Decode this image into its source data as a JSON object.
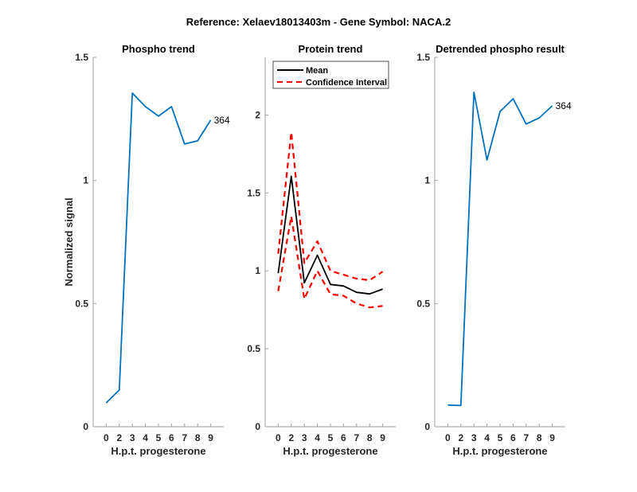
{
  "chart_data": {
    "suptitle": "Reference:  Xelaev18013403m - Gene Symbol:  NACA.2",
    "panels": [
      {
        "type": "line",
        "title": "Phospho trend",
        "xlabel": "H.p.t. progesterone",
        "ylabel": "Normalized signal",
        "categories": [
          "0",
          "2",
          "3",
          "4",
          "5",
          "6",
          "7",
          "8",
          "9"
        ],
        "ylim": [
          0,
          1.5
        ],
        "yticks": [
          0,
          0.5,
          1,
          1.5
        ],
        "ytick_labels": [
          "0",
          "0.5",
          "1",
          "1.5"
        ],
        "series": [
          {
            "name": "364",
            "color": "#0072BD",
            "style": "solid",
            "values": [
              0.097,
              0.149,
              1.355,
              1.3,
              1.261,
              1.3,
              1.148,
              1.161,
              1.245
            ]
          }
        ],
        "end_label": "364"
      },
      {
        "type": "line",
        "title": "Protein trend",
        "xlabel": "H.p.t. progesterone",
        "ylabel": "",
        "categories": [
          "0",
          "2",
          "3",
          "4",
          "5",
          "6",
          "7",
          "8",
          "9"
        ],
        "ylim": [
          0,
          2.37
        ],
        "yticks": [
          0,
          0.5,
          1,
          1.5,
          2
        ],
        "ytick_labels": [
          "0",
          "0.5",
          "1",
          "1.5",
          "2"
        ],
        "legend": {
          "position": "top-left",
          "entries": [
            "Mean",
            "Confidence Interval"
          ]
        },
        "series": [
          {
            "name": "Mean",
            "color": "#000000",
            "style": "solid",
            "values": [
              0.985,
              1.607,
              0.923,
              1.1,
              0.913,
              0.903,
              0.862,
              0.852,
              0.883
            ]
          },
          {
            "name": "Confidence Interval (upper)",
            "color": "#FF0000",
            "style": "dashed",
            "values": [
              1.11,
              1.89,
              1.05,
              1.19,
              1.0,
              0.975,
              0.95,
              0.94,
              0.995
            ]
          },
          {
            "name": "Confidence Interval (lower)",
            "color": "#FF0000",
            "style": "dashed",
            "values": [
              0.87,
              1.35,
              0.82,
              1.0,
              0.85,
              0.84,
              0.79,
              0.765,
              0.775
            ]
          }
        ]
      },
      {
        "type": "line",
        "title": "Detrended phospho result",
        "xlabel": "H.p.t. progesterone",
        "ylabel": "",
        "categories": [
          "0",
          "2",
          "3",
          "4",
          "5",
          "6",
          "7",
          "8",
          "9"
        ],
        "ylim": [
          0,
          1.5
        ],
        "yticks": [
          0,
          0.5,
          1,
          1.5
        ],
        "ytick_labels": [
          "0",
          "0.5",
          "1",
          "1.5"
        ],
        "series": [
          {
            "name": "364",
            "color": "#0072BD",
            "style": "solid",
            "values": [
              0.088,
              0.086,
              1.358,
              1.083,
              1.28,
              1.332,
              1.229,
              1.254,
              1.303
            ]
          }
        ],
        "end_label": "364"
      }
    ]
  }
}
